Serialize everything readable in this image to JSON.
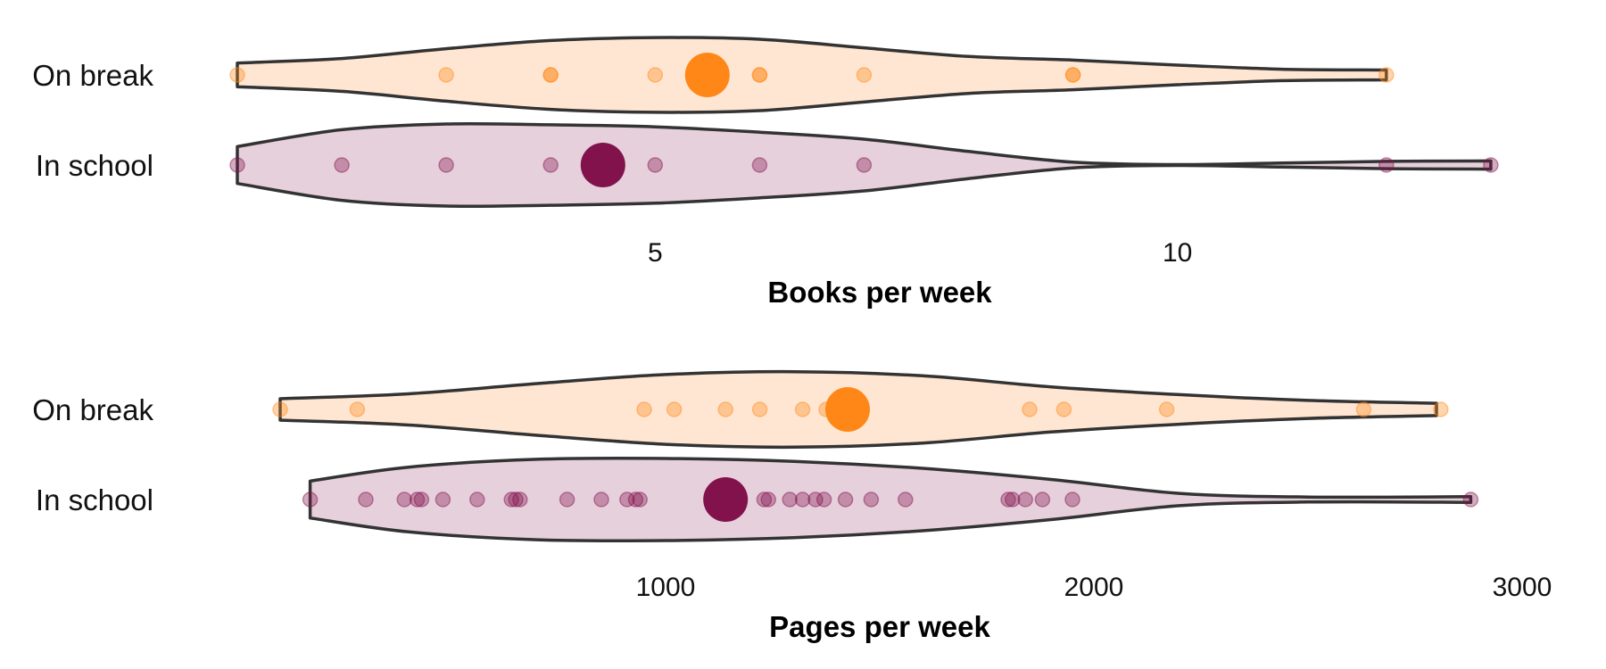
{
  "colors": {
    "on_break_fill": "#ffe6d2",
    "on_break_point": "#ff8717",
    "in_school_fill": "#e6d0dc",
    "in_school_point": "#82124c",
    "outline": "#333333"
  },
  "chart_data": [
    {
      "type": "violin",
      "xlabel": "Books per week",
      "xlim": [
        1,
        13.3
      ],
      "xticks": [
        5,
        10
      ],
      "tick_labels": [
        "5",
        "10"
      ],
      "grid": false,
      "groups": [
        {
          "name": "On break",
          "color_key": "on_break",
          "x_min": 1,
          "x_max": 12,
          "mean": 5.5,
          "points": [
            1,
            3,
            4,
            4,
            5,
            6,
            6,
            7,
            9,
            9,
            12
          ],
          "density_x": [
            1,
            2,
            3,
            4,
            5,
            6,
            7,
            8,
            9,
            10,
            11,
            12
          ],
          "density_half_width": [
            0.29,
            0.4,
            0.64,
            0.84,
            0.91,
            0.87,
            0.66,
            0.45,
            0.36,
            0.24,
            0.14,
            0.12
          ]
        },
        {
          "name": "In school",
          "color_key": "in_school",
          "x_min": 1,
          "x_max": 13,
          "mean": 4.5,
          "points": [
            1,
            2,
            3,
            4,
            5,
            6,
            7,
            12,
            13
          ],
          "density_x": [
            1,
            2,
            3,
            4,
            5,
            6,
            7,
            8,
            9,
            10,
            11,
            12,
            13
          ],
          "density_half_width": [
            0.45,
            0.86,
            1.0,
            0.98,
            0.93,
            0.8,
            0.63,
            0.33,
            0.07,
            0.01,
            0.05,
            0.09,
            0.1
          ]
        }
      ]
    },
    {
      "type": "violin",
      "xlabel": "Pages per week",
      "xlim": [
        0,
        3000
      ],
      "xticks": [
        1000,
        2000,
        3000
      ],
      "tick_labels": [
        "1000",
        "2000",
        "3000"
      ],
      "grid": false,
      "groups": [
        {
          "name": "On break",
          "color_key": "on_break",
          "x_min": 100,
          "x_max": 2800,
          "mean": 1425,
          "points": [
            100,
            280,
            950,
            1020,
            1140,
            1220,
            1320,
            1375,
            1850,
            1930,
            2170,
            2630,
            2810
          ],
          "density_x": [
            100,
            400,
            700,
            1000,
            1300,
            1600,
            1900,
            2200,
            2500,
            2800
          ],
          "density_half_width": [
            0.26,
            0.38,
            0.63,
            0.85,
            0.92,
            0.82,
            0.55,
            0.36,
            0.22,
            0.15
          ]
        },
        {
          "name": "In school",
          "color_key": "in_school",
          "x_min": 170,
          "x_max": 2880,
          "mean": 1140,
          "points": [
            170,
            300,
            390,
            420,
            430,
            480,
            560,
            640,
            650,
            660,
            770,
            850,
            910,
            930,
            940,
            1120,
            1130,
            1170,
            1230,
            1240,
            1290,
            1320,
            1350,
            1370,
            1420,
            1480,
            1560,
            1800,
            1810,
            1840,
            1880,
            1950,
            2880
          ],
          "density_x": [
            170,
            400,
            700,
            1000,
            1300,
            1600,
            1900,
            2200,
            2500,
            2880
          ],
          "density_half_width": [
            0.45,
            0.79,
            0.98,
            1.0,
            0.93,
            0.76,
            0.49,
            0.15,
            0.06,
            0.07
          ]
        }
      ]
    }
  ]
}
